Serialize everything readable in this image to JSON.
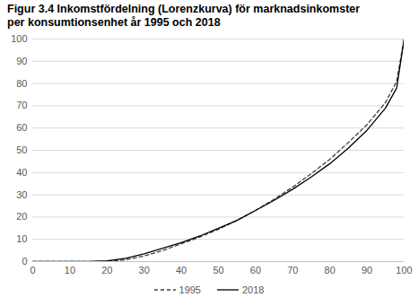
{
  "chart_data": {
    "type": "line",
    "title": "Figur 3.4 Inkomstfördelning (Lorenzkurva) för marknadsinkomster per konsumtionsenhet år 1995 och 2018",
    "x": [
      0,
      5,
      10,
      15,
      20,
      25,
      30,
      35,
      40,
      45,
      50,
      55,
      60,
      65,
      70,
      75,
      80,
      85,
      90,
      95,
      98,
      100
    ],
    "series": [
      {
        "name": "1995",
        "color": "#404040",
        "line_style": "dashed",
        "values": [
          0,
          0,
          0,
          0,
          0,
          0.8,
          2.5,
          5,
          8,
          11,
          14.5,
          18.5,
          23,
          28,
          33.5,
          39.5,
          46,
          53.5,
          61.5,
          71.5,
          81,
          100
        ]
      },
      {
        "name": "2018",
        "color": "#000000",
        "line_style": "solid",
        "values": [
          0,
          0,
          0,
          0,
          0.3,
          1.5,
          3.5,
          6,
          8.5,
          11.5,
          15,
          18.5,
          23,
          27.5,
          32.5,
          38,
          44,
          51,
          59,
          69,
          78,
          100
        ]
      }
    ],
    "xlim": [
      0,
      100
    ],
    "xticks": [
      0,
      10,
      20,
      30,
      40,
      50,
      60,
      70,
      80,
      90,
      100
    ],
    "ylim": [
      0,
      100
    ],
    "yticks": [
      0,
      10,
      20,
      30,
      40,
      50,
      60,
      70,
      80,
      90,
      100
    ],
    "grid": true,
    "legend": "bottom"
  }
}
